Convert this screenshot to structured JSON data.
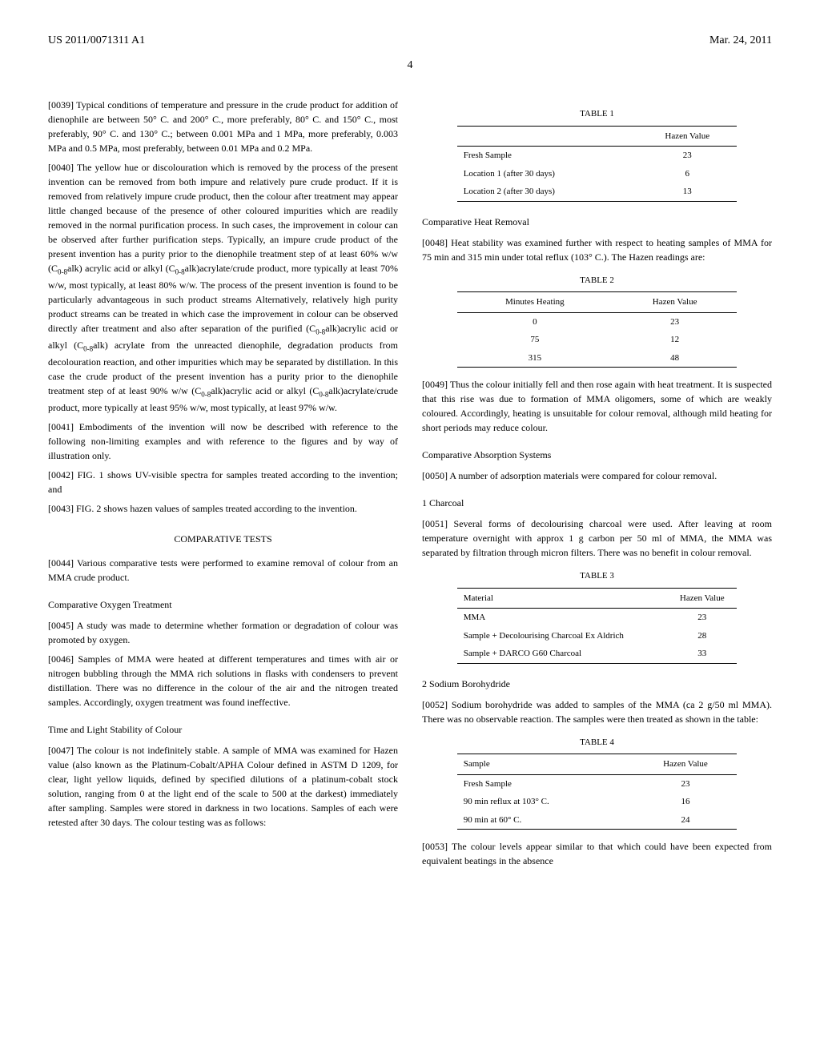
{
  "header": {
    "pubNumber": "US 2011/0071311 A1",
    "date": "Mar. 24, 2011"
  },
  "pageNum": "4",
  "left": {
    "p39": "[0039]   Typical conditions of temperature and pressure in the crude product for addition of dienophile are between 50° C. and 200° C., more preferably, 80° C. and 150° C., most preferably, 90° C. and 130° C.; between 0.001 MPa and 1 MPa, more preferably, 0.003 MPa and 0.5 MPa, most preferably, between 0.01 MPa and 0.2 MPa.",
    "p40a": "[0040]   The yellow hue or discolouration which is removed by the process of the present invention can be removed from both impure and relatively pure crude product. If it is removed from relatively impure crude product, then the colour after treatment may appear little changed because of the presence of other coloured impurities which are readily removed in the normal purification process. In such cases, the improvement in colour can be observed after further purification steps. Typically, an impure crude product of the present invention has a purity prior to the dienophile treatment step of at least 60% w/w (C",
    "p40b": "alk) acrylic acid or alkyl (C",
    "p40c": "alk)acrylate/crude product, more typically at least 70% w/w, most typically, at least 80% w/w. The process of the present invention is found to be particularly advantageous in such product streams Alternatively, relatively high purity product streams can be treated in which case the improvement in colour can be observed directly after treatment and also after separation of the purified (C",
    "p40d": "alk)acrylic acid or alkyl (C",
    "p40e": "alk) acrylate from the unreacted dienophile, degradation products from decolouration reaction, and other impurities which may be separated by distillation. In this case the crude product of the present invention has a purity prior to the dienophile treatment step of at least 90% w/w (C",
    "p40f": "alk)acrylic acid or alkyl (C",
    "p40g": "alk)acrylate/crude product, more typically at least 95% w/w, most typically, at least 97% w/w.",
    "p41": "[0041]   Embodiments of the invention will now be described with reference to the following non-limiting examples and with reference to the figures and by way of illustration only.",
    "p42": "[0042]   FIG. 1 shows UV-visible spectra for samples treated according to the invention; and",
    "p43": "[0043]   FIG. 2 shows hazen values of samples treated according to the invention.",
    "compTests": "COMPARATIVE TESTS",
    "p44": "[0044]   Various comparative tests were performed to examine removal of colour from an MMA crude product.",
    "compOxygen": "Comparative Oxygen Treatment",
    "p45": "[0045]   A study was made to determine whether formation or degradation of colour was promoted by oxygen.",
    "p46": "[0046]   Samples of MMA were heated at different temperatures and times with air or nitrogen bubbling through the MMA rich solutions in flasks with condensers to prevent distillation. There was no difference in the colour of the air and the nitrogen treated samples. Accordingly, oxygen treatment was found ineffective.",
    "timeLightStability": "Time and Light Stability of Colour",
    "p47": "[0047]   The colour is not indefinitely stable. A sample of MMA was examined for Hazen value (also known as the Platinum-Cobalt/APHA Colour defined in ASTM D 1209, for clear, light yellow liquids, defined by specified dilutions of a platinum-cobalt stock solution, ranging from 0 at the light end of the scale to 500 at the darkest) immediately after sampling. Samples were stored in darkness in two locations. Samples of each were retested after 30 days. The colour testing was as follows:"
  },
  "right": {
    "table1": {
      "caption": "TABLE 1",
      "header": "Hazen Value",
      "rows": [
        {
          "label": "Fresh Sample",
          "value": "23"
        },
        {
          "label": "Location 1 (after 30 days)",
          "value": "6"
        },
        {
          "label": "Location 2 (after 30 days)",
          "value": "13"
        }
      ]
    },
    "compHeat": "Comparative Heat Removal",
    "p48": "[0048]   Heat stability was examined further with respect to heating samples of MMA for 75 min and 315 min under total reflux (103° C.). The Hazen readings are:",
    "table2": {
      "caption": "TABLE 2",
      "h1": "Minutes Heating",
      "h2": "Hazen Value",
      "rows": [
        {
          "c1": "0",
          "c2": "23"
        },
        {
          "c1": "75",
          "c2": "12"
        },
        {
          "c1": "315",
          "c2": "48"
        }
      ]
    },
    "p49": "[0049]   Thus the colour initially fell and then rose again with heat treatment. It is suspected that this rise was due to formation of MMA oligomers, some of which are weakly coloured. Accordingly, heating is unsuitable for colour removal, although mild heating for short periods may reduce colour.",
    "compAbs": "Comparative Absorption Systems",
    "p50": "[0050]   A number of adsorption materials were compared for colour removal.",
    "charcoal": "1 Charcoal",
    "p51": "[0051]   Several forms of decolourising charcoal were used. After leaving at room temperature overnight with approx 1 g carbon per 50 ml of MMA, the MMA was separated by filtration through micron filters. There was no benefit in colour removal.",
    "table3": {
      "caption": "TABLE 3",
      "h1": "Material",
      "h2": "Hazen Value",
      "rows": [
        {
          "c1": "MMA",
          "c2": "23"
        },
        {
          "c1": "Sample + Decolourising Charcoal Ex Aldrich",
          "c2": "28"
        },
        {
          "c1": "Sample + DARCO G60 Charcoal",
          "c2": "33"
        }
      ]
    },
    "boro": "2 Sodium Borohydride",
    "p52": "[0052]   Sodium borohydride was added to samples of the MMA (ca 2 g/50 ml MMA). There was no observable reaction. The samples were then treated as shown in the table:",
    "table4": {
      "caption": "TABLE 4",
      "h1": "Sample",
      "h2": "Hazen Value",
      "rows": [
        {
          "c1": "Fresh Sample",
          "c2": "23"
        },
        {
          "c1": "90 min reflux at 103° C.",
          "c2": "16"
        },
        {
          "c1": "90 min at 60° C.",
          "c2": "24"
        }
      ]
    },
    "p53": "[0053]   The colour levels appear similar to that which could have been expected from equivalent beatings in the absence"
  },
  "chemSub": "0-8"
}
